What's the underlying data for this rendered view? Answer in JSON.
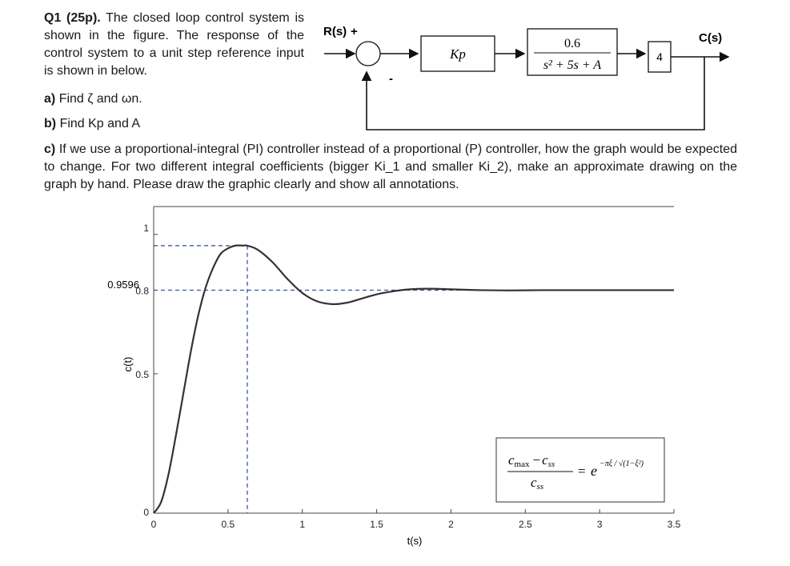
{
  "question": {
    "number": "Q1 (25p).",
    "intro": "The closed loop control system is shown in the figure. The response of the control system to a unit step reference input is shown in below.",
    "parts": [
      {
        "label": "a)",
        "text": "Find ζ and ωn."
      },
      {
        "label": "b)",
        "text": "Find Kp and A"
      },
      {
        "label": "c)",
        "text": "If we use a proportional-integral (PI) controller instead of a proportional (P) controller, how the graph would be expected to change. For two different integral coefficients (bigger Ki_1 and smaller Ki_2), make an approximate drawing on the graph by hand. Please draw the graphic clearly and show all annotations."
      }
    ]
  },
  "block_diagram": {
    "input_label": "R(s)",
    "plus_sign": "+",
    "minus_sign": "-",
    "controller": "Kp",
    "plant_numerator": "0.6",
    "plant_denominator": "s² + 5s + A",
    "gain_block": "4",
    "output_label": "C(s)"
  },
  "chart_data": {
    "type": "line",
    "xlabel": "t(s)",
    "ylabel": "c(t)",
    "xlim": [
      0,
      3.5
    ],
    "ylim": [
      0,
      1.1
    ],
    "x_ticks": [
      "0",
      "0.5",
      "1",
      "1.5",
      "2",
      "2.5",
      "3",
      "3.5"
    ],
    "y_ticks": [
      "0",
      "0.5",
      "0.8",
      "1"
    ],
    "annotated_levels": [
      "0.9596",
      "0.8"
    ],
    "peak_value": 0.9596,
    "steady_state": 0.8,
    "peak_time_approx": 0.63,
    "series": [
      {
        "x": [
          0,
          0.05,
          0.1,
          0.15,
          0.2,
          0.25,
          0.3,
          0.35,
          0.4,
          0.45,
          0.5,
          0.55,
          0.6,
          0.63,
          0.7,
          0.8,
          0.9,
          1.0,
          1.1,
          1.2,
          1.3,
          1.4,
          1.5,
          1.6,
          1.7,
          1.8,
          1.9,
          2.0,
          2.2,
          2.4,
          2.6,
          2.8,
          3.0,
          3.5
        ],
        "y": [
          0,
          0.04,
          0.14,
          0.28,
          0.43,
          0.58,
          0.71,
          0.81,
          0.88,
          0.93,
          0.95,
          0.96,
          0.96,
          0.9596,
          0.945,
          0.9,
          0.84,
          0.79,
          0.76,
          0.75,
          0.755,
          0.77,
          0.785,
          0.795,
          0.802,
          0.805,
          0.805,
          0.803,
          0.8,
          0.799,
          0.8,
          0.8,
          0.8,
          0.8
        ]
      }
    ]
  },
  "formula": {
    "numerator_left": "c",
    "numerator_left_sub": "max",
    "numerator_minus": "−",
    "numerator_right": "c",
    "numerator_right_sub": "ss",
    "denominator": "c",
    "denominator_sub": "ss",
    "equals": "=",
    "base": "e",
    "exponent": "−πξ / √(1−ξ²)"
  }
}
